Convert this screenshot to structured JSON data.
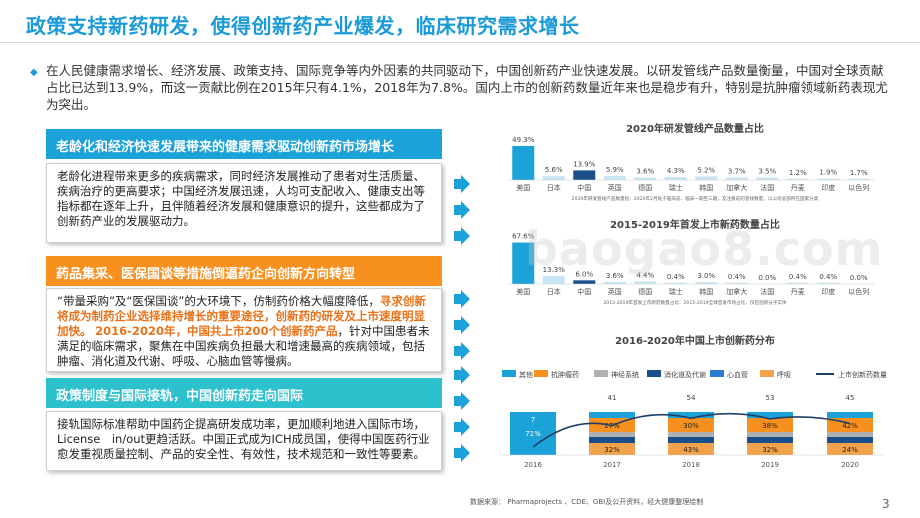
{
  "title": "政策支持新药研发，使得创新药产业爆发，临床研究需求增长",
  "intro": "在人民健康需求增长、经济发展、政策支持、国际竞争等内外因素的共同驱动下，中国创新药产业快速发展。以研发管线产品数量衡量，中国对全球贡献占比已达到13.9%，而这一贡献比例在2015年只有4.1%，2018年为7.8%。国内上市的创新药数量近年来也是稳步有升，特别是抗肿瘤领域新药表现尤为突出。",
  "cards": [
    {
      "heading": "老龄化和经济快速发展带来的健康需求驱动创新药市场增长",
      "body": "老龄化进程带来更多的疾病需求，同时经济发展推动了患者对生活质量、疾病治疗的更高要求；中国经济发展迅速，人均可支配收入、健康支出等指标都在逐年上升，且伴随着经济发展和健康意识的提升，这些都成为了创新药产业的发展驱动力。"
    },
    {
      "heading": "药品集采、医保国谈等措施倒逼药企向创新方向转型",
      "body_pre": "“带量采购”及“医保国谈”的大环境下，仿制药价格大幅度降低，",
      "body_hl1": "寻求创新将成为制药企业选择维持增长的重要途径，创新药的研发及上市速度明显加快。",
      "body_hl2": "2016-2020年，中国共上市200个创新药产品",
      "body_post": "，针对中国患者未满足的临床需求，聚焦在中国疾病负担最大和增速最高的疾病领域，包括肿瘤、消化道及代谢、呼吸、心脑血管等慢病。"
    },
    {
      "heading": "政策制度与国际接轨，中国创新药走向国际",
      "body": "接轨国际标准帮助中国药企提高研发成功率，更加顺利地进入国际市场，License　in/out更趋活跃。中国正式成为ICH成员国，使得中国医药行业愈发重视质量控制、产品的安全性、有效性，技术规范和一致性等要素。"
    }
  ],
  "watermark": "baogao8.com",
  "source": "数据来源： Pharmaprojects 、CDE、GBI及公开资料，经大健康整理绘制",
  "page_number": "3",
  "colors": {
    "blue": "#1ba3d9",
    "orange": "#f7901e",
    "teal": "#2cc1cd",
    "title": "#1a9ad6"
  },
  "chart_data": [
    {
      "type": "bar",
      "title": "2020年研发管线产品数量占比",
      "note": "2020年研发管线产品数量指：2020年2月处于临床前、临床一期至三期，及注册前的管线数量，以公司总部所在国家分类",
      "categories": [
        "美国",
        "日本",
        "中国",
        "英国",
        "德国",
        "瑞士",
        "韩国",
        "加拿大",
        "法国",
        "丹麦",
        "印度",
        "以色列"
      ],
      "values": [
        49.3,
        5.6,
        13.9,
        5.9,
        3.6,
        4.3,
        5.2,
        3.7,
        3.5,
        1.2,
        1.9,
        1.7
      ],
      "labels": [
        "49.3%",
        "5.6%",
        "13.9%",
        "5.9%",
        "3.6%",
        "4.3%",
        "5.2%",
        "3.7%",
        "3.5%",
        "1.2%",
        "1.9%",
        "1.7%"
      ],
      "ylim": [
        0,
        55
      ]
    },
    {
      "type": "bar",
      "title": "2015-2019年首发上市新药数量占比",
      "note": "2015-2019年首发上市新药数量占比：2015-2019全球首发市场占比，仅包括新分子实体",
      "categories": [
        "美国",
        "日本",
        "中国",
        "英国",
        "德国",
        "瑞士",
        "韩国",
        "加拿大",
        "法国",
        "丹麦",
        "印度",
        "以色列"
      ],
      "values": [
        67.6,
        13.3,
        6.0,
        3.6,
        4.4,
        0.4,
        3.0,
        0.4,
        0.0,
        0.4,
        0.4,
        0.0
      ],
      "labels": [
        "67.6%",
        "13.3%",
        "6.0%",
        "3.6%",
        "4.4%",
        "0.4%",
        "3.0%",
        "0.4%",
        "0.0%",
        "0.4%",
        "0.4%",
        "0.0%"
      ],
      "ylim": [
        0,
        75
      ]
    },
    {
      "type": "bar",
      "title": "2016-2020年中国上市创新药分布",
      "legend": [
        "其他",
        "抗肿瘤药",
        "神经系统",
        "消化道及代谢",
        "心血管",
        "呼吸",
        "上市创新药数量"
      ],
      "legend_colors": [
        "#1ba3d9",
        "#f7901e",
        "#b0b0b0",
        "#1a4f8a",
        "#2c7bd0",
        "#f2a24a",
        "#1f3f66"
      ],
      "categories": [
        "2016",
        "2017",
        "2018",
        "2019",
        "2020"
      ],
      "counts": [
        7,
        41,
        54,
        53,
        45
      ],
      "segment_labels": [
        [
          "71%",
          ""
        ],
        [
          "32%",
          "27%"
        ],
        [
          "43%",
          "30%"
        ],
        [
          "32%",
          "38%"
        ],
        [
          "24%",
          "42%"
        ]
      ]
    }
  ]
}
